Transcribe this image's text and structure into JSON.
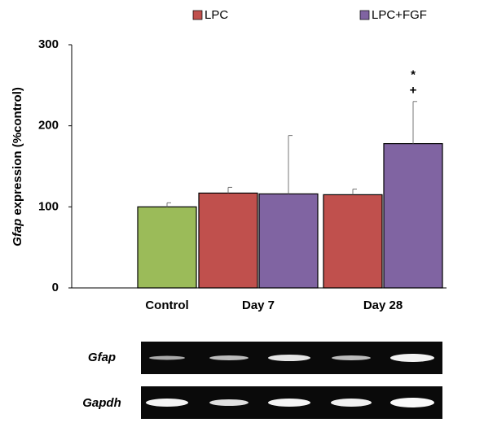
{
  "chart_data": {
    "type": "bar",
    "ylabel_italic": "Gfap",
    "ylabel": "expression (%control)",
    "categories": [
      "Control",
      "Day 7",
      "Day 28"
    ],
    "control": {
      "value": 100,
      "error": 5,
      "color": "#9bbb59"
    },
    "series": [
      {
        "name": "LPC",
        "color": "#c0504d",
        "values": [
          null,
          117,
          115
        ],
        "errors": [
          null,
          7,
          7
        ]
      },
      {
        "name": "LPC+FGF",
        "color": "#8064a2",
        "values": [
          null,
          116,
          178
        ],
        "errors": [
          null,
          72,
          52
        ]
      }
    ],
    "annotations": [
      "*",
      "+"
    ],
    "ylim": [
      0,
      300
    ],
    "yticks": [
      0,
      100,
      200,
      300
    ],
    "legend": "top"
  },
  "gel": {
    "rows": [
      "Gfap",
      "Gapdh"
    ]
  }
}
